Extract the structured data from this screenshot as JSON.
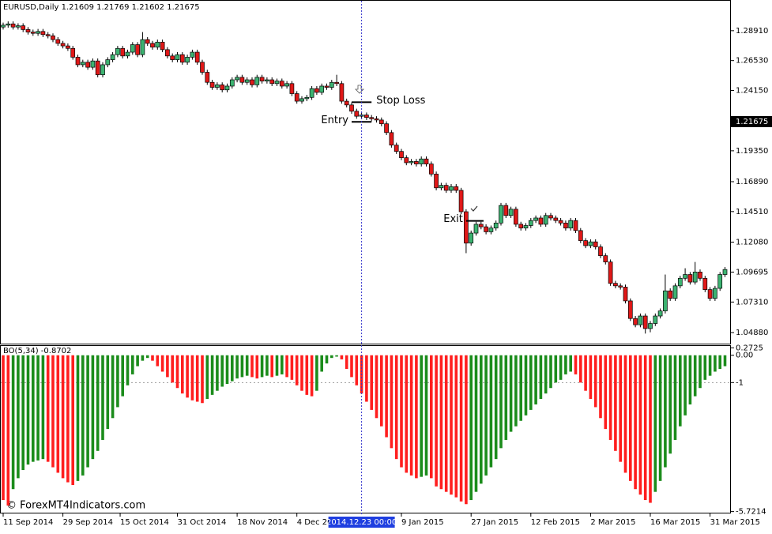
{
  "chart_data": [
    {
      "type": "candlestick",
      "title": "EURUSD,Daily  1.21609 1.21769 1.21602 1.21675",
      "up_color": "#3cb371",
      "down_color": "#e01818",
      "open": [
        1.292,
        1.2935,
        1.2945,
        1.292,
        1.293,
        1.29,
        1.288,
        1.287,
        1.2885,
        1.286,
        1.285,
        1.282,
        1.279,
        1.277,
        1.275,
        1.268,
        1.262,
        1.264,
        1.26,
        1.265,
        1.254,
        1.262,
        1.266,
        1.27,
        1.275,
        1.269,
        1.272,
        1.278,
        1.27,
        1.282,
        1.279,
        1.276,
        1.28,
        1.274,
        1.269,
        1.266,
        1.27,
        1.264,
        1.268,
        1.272,
        1.264,
        1.256,
        1.248,
        1.244,
        1.246,
        1.242,
        1.245,
        1.25,
        1.252,
        1.248,
        1.25,
        1.246,
        1.252,
        1.249,
        1.25,
        1.247,
        1.249,
        1.245,
        1.247,
        1.239,
        1.233,
        1.235,
        1.236,
        1.243,
        1.24,
        1.245,
        1.244,
        1.248,
        1.247,
        1.233,
        1.23,
        1.225,
        1.221,
        1.222,
        1.22,
        1.219,
        1.218,
        1.215,
        1.208,
        1.198,
        1.193,
        1.188,
        1.184,
        1.185,
        1.183,
        1.187,
        1.183,
        1.175,
        1.164,
        1.166,
        1.162,
        1.165,
        1.162,
        1.145,
        1.12,
        1.128,
        1.135,
        1.133,
        1.129,
        1.132,
        1.136,
        1.15,
        1.142,
        1.147,
        1.135,
        1.132,
        1.134,
        1.138,
        1.14,
        1.135,
        1.142,
        1.14,
        1.138,
        1.136,
        1.132,
        1.138,
        1.13,
        1.122,
        1.118,
        1.121,
        1.117,
        1.11,
        1.105,
        1.088,
        1.086,
        1.085,
        1.074,
        1.06,
        1.055,
        1.062,
        1.052,
        1.056,
        1.062,
        1.066,
        1.082,
        1.076,
        1.086,
        1.092,
        1.095,
        1.089,
        1.097,
        1.092,
        1.083,
        1.076,
        1.084,
        1.095
      ],
      "high": [
        1.2955,
        1.2965,
        1.2965,
        1.295,
        1.295,
        1.292,
        1.29,
        1.2905,
        1.2905,
        1.288,
        1.287,
        1.284,
        1.281,
        1.279,
        1.277,
        1.27,
        1.266,
        1.266,
        1.267,
        1.267,
        1.264,
        1.268,
        1.272,
        1.277,
        1.277,
        1.274,
        1.28,
        1.28,
        1.288,
        1.284,
        1.281,
        1.282,
        1.282,
        1.276,
        1.271,
        1.272,
        1.272,
        1.27,
        1.274,
        1.274,
        1.266,
        1.258,
        1.25,
        1.248,
        1.248,
        1.247,
        1.252,
        1.254,
        1.254,
        1.252,
        1.252,
        1.254,
        1.254,
        1.252,
        1.252,
        1.251,
        1.251,
        1.249,
        1.249,
        1.241,
        1.237,
        1.238,
        1.245,
        1.245,
        1.247,
        1.247,
        1.25,
        1.254,
        1.249,
        1.235,
        1.232,
        1.227,
        1.224,
        1.224,
        1.222,
        1.221,
        1.22,
        1.217,
        1.21,
        1.2,
        1.195,
        1.19,
        1.187,
        1.187,
        1.189,
        1.189,
        1.185,
        1.177,
        1.168,
        1.168,
        1.167,
        1.167,
        1.164,
        1.147,
        1.13,
        1.137,
        1.137,
        1.135,
        1.134,
        1.138,
        1.152,
        1.152,
        1.149,
        1.149,
        1.137,
        1.136,
        1.14,
        1.142,
        1.142,
        1.144,
        1.144,
        1.142,
        1.14,
        1.138,
        1.14,
        1.14,
        1.132,
        1.124,
        1.123,
        1.123,
        1.119,
        1.112,
        1.107,
        1.09,
        1.088,
        1.087,
        1.076,
        1.062,
        1.064,
        1.064,
        1.058,
        1.064,
        1.068,
        1.095,
        1.084,
        1.088,
        1.094,
        1.1,
        1.097,
        1.105,
        1.099,
        1.094,
        1.085,
        1.086,
        1.097,
        1.101
      ],
      "low": [
        1.29,
        1.2915,
        1.29,
        1.29,
        1.288,
        1.286,
        1.285,
        1.285,
        1.284,
        1.283,
        1.28,
        1.277,
        1.275,
        1.273,
        1.266,
        1.26,
        1.26,
        1.258,
        1.258,
        1.252,
        1.252,
        1.26,
        1.264,
        1.268,
        1.267,
        1.267,
        1.27,
        1.268,
        1.268,
        1.277,
        1.274,
        1.274,
        1.272,
        1.267,
        1.264,
        1.264,
        1.262,
        1.262,
        1.266,
        1.262,
        1.254,
        1.246,
        1.242,
        1.242,
        1.24,
        1.24,
        1.243,
        1.248,
        1.246,
        1.246,
        1.244,
        1.244,
        1.247,
        1.247,
        1.245,
        1.245,
        1.243,
        1.243,
        1.237,
        1.231,
        1.231,
        1.233,
        1.234,
        1.238,
        1.238,
        1.242,
        1.242,
        1.245,
        1.231,
        1.228,
        1.223,
        1.219,
        1.219,
        1.218,
        1.217,
        1.216,
        1.213,
        1.206,
        1.196,
        1.191,
        1.186,
        1.182,
        1.182,
        1.181,
        1.181,
        1.181,
        1.173,
        1.162,
        1.162,
        1.16,
        1.16,
        1.16,
        1.143,
        1.112,
        1.118,
        1.126,
        1.131,
        1.127,
        1.127,
        1.13,
        1.134,
        1.14,
        1.14,
        1.133,
        1.13,
        1.13,
        1.132,
        1.136,
        1.133,
        1.133,
        1.138,
        1.136,
        1.134,
        1.13,
        1.13,
        1.128,
        1.12,
        1.116,
        1.116,
        1.115,
        1.108,
        1.103,
        1.086,
        1.084,
        1.083,
        1.072,
        1.058,
        1.053,
        1.053,
        1.048,
        1.049,
        1.054,
        1.06,
        1.064,
        1.074,
        1.074,
        1.084,
        1.09,
        1.087,
        1.087,
        1.09,
        1.081,
        1.074,
        1.074,
        1.082,
        1.093
      ],
      "close": [
        1.2935,
        1.2945,
        1.292,
        1.293,
        1.29,
        1.288,
        1.287,
        1.2885,
        1.286,
        1.285,
        1.282,
        1.279,
        1.277,
        1.275,
        1.268,
        1.262,
        1.264,
        1.26,
        1.265,
        1.254,
        1.262,
        1.266,
        1.27,
        1.275,
        1.269,
        1.272,
        1.278,
        1.27,
        1.282,
        1.279,
        1.276,
        1.28,
        1.274,
        1.269,
        1.266,
        1.27,
        1.264,
        1.268,
        1.272,
        1.264,
        1.256,
        1.248,
        1.244,
        1.246,
        1.242,
        1.245,
        1.25,
        1.252,
        1.248,
        1.25,
        1.246,
        1.252,
        1.249,
        1.25,
        1.247,
        1.249,
        1.245,
        1.247,
        1.239,
        1.233,
        1.235,
        1.236,
        1.243,
        1.24,
        1.245,
        1.244,
        1.248,
        1.247,
        1.233,
        1.23,
        1.225,
        1.221,
        1.222,
        1.22,
        1.219,
        1.218,
        1.215,
        1.208,
        1.198,
        1.193,
        1.188,
        1.184,
        1.185,
        1.183,
        1.187,
        1.183,
        1.175,
        1.164,
        1.166,
        1.162,
        1.165,
        1.162,
        1.145,
        1.12,
        1.128,
        1.135,
        1.133,
        1.129,
        1.132,
        1.136,
        1.15,
        1.142,
        1.147,
        1.135,
        1.132,
        1.134,
        1.138,
        1.14,
        1.135,
        1.142,
        1.14,
        1.138,
        1.136,
        1.132,
        1.138,
        1.13,
        1.122,
        1.118,
        1.121,
        1.117,
        1.11,
        1.105,
        1.088,
        1.086,
        1.085,
        1.074,
        1.06,
        1.055,
        1.062,
        1.052,
        1.056,
        1.062,
        1.066,
        1.082,
        1.076,
        1.086,
        1.092,
        1.095,
        1.089,
        1.097,
        1.092,
        1.083,
        1.076,
        1.084,
        1.095,
        1.099
      ],
      "ylim": [
        1.04,
        1.3129
      ],
      "yticks": [
        {
          "value": 1.2891,
          "label": "1.28910"
        },
        {
          "value": 1.2653,
          "label": "1.26530"
        },
        {
          "value": 1.2415,
          "label": "1.24150"
        },
        {
          "value": 1.1935,
          "label": "1.19350"
        },
        {
          "value": 1.1689,
          "label": "1.16890"
        },
        {
          "value": 1.1451,
          "label": "1.14510"
        },
        {
          "value": 1.1208,
          "label": "1.12080"
        },
        1.09695,
        {
          "value": 1.0731,
          "label": "1.07310"
        },
        {
          "value": 1.0488,
          "label": "1.04880"
        }
      ],
      "current_price": 1.21675,
      "annotations": [
        {
          "label": "Stop Loss",
          "value": 1.2322,
          "x": [
            70,
            74
          ]
        },
        {
          "label": "Entry",
          "value": 1.2165,
          "x": [
            70,
            74
          ]
        },
        {
          "label": "Exit",
          "value": 1.1377,
          "x": [
            93,
            96.5
          ]
        }
      ]
    },
    {
      "type": "histogram",
      "title": "BO(5,34) -0.8702",
      "up_color": "#1b8c1b",
      "down_color": "#ff1e1e",
      "values": [
        -5.3,
        -5.5,
        -4.9,
        -4.5,
        -4.2,
        -4.0,
        -3.9,
        -3.85,
        -3.8,
        -3.9,
        -4.1,
        -4.3,
        -4.5,
        -4.65,
        -4.75,
        -4.6,
        -4.4,
        -4.1,
        -3.8,
        -3.5,
        -3.1,
        -2.7,
        -2.3,
        -1.9,
        -1.5,
        -1.1,
        -0.7,
        -0.4,
        -0.2,
        -0.1,
        -0.2,
        -0.4,
        -0.6,
        -0.8,
        -1.0,
        -1.2,
        -1.4,
        -1.55,
        -1.65,
        -1.7,
        -1.75,
        -1.6,
        -1.45,
        -1.3,
        -1.15,
        -1.05,
        -0.95,
        -0.85,
        -0.8,
        -0.75,
        -0.8,
        -0.85,
        -0.8,
        -0.75,
        -0.8,
        -0.75,
        -0.7,
        -0.8,
        -0.9,
        -1.1,
        -1.3,
        -1.45,
        -1.5,
        -1.3,
        -0.6,
        -0.3,
        -0.1,
        -0.05,
        -0.15,
        -0.5,
        -0.8,
        -1.1,
        -1.4,
        -1.7,
        -2.0,
        -2.3,
        -2.6,
        -3.0,
        -3.4,
        -3.8,
        -4.1,
        -4.3,
        -4.4,
        -4.5,
        -4.45,
        -4.4,
        -4.5,
        -4.8,
        -4.9,
        -5.0,
        -5.1,
        -5.2,
        -5.35,
        -5.45,
        -5.3,
        -5.0,
        -4.7,
        -4.4,
        -4.1,
        -3.8,
        -3.4,
        -3.1,
        -2.8,
        -2.6,
        -2.4,
        -2.2,
        -2.0,
        -1.8,
        -1.6,
        -1.4,
        -1.2,
        -1.0,
        -0.9,
        -0.7,
        -0.6,
        -0.7,
        -1.0,
        -1.3,
        -1.6,
        -1.9,
        -2.3,
        -2.7,
        -3.1,
        -3.5,
        -3.9,
        -4.3,
        -4.6,
        -4.9,
        -5.1,
        -5.3,
        -5.4,
        -5.0,
        -4.6,
        -4.1,
        -3.6,
        -3.1,
        -2.6,
        -2.2,
        -1.8,
        -1.5,
        -1.2,
        -0.9,
        -0.75,
        -0.6,
        -0.5,
        -0.4
      ],
      "ylim": [
        -5.79,
        0.31
      ],
      "yticks": [
        0.2725,
        {
          "value": 0,
          "label": "0.00"
        },
        -1,
        -5.7214
      ],
      "levels": [
        -1
      ],
      "xticks": [
        {
          "value": 0,
          "label": "11 Sep 2014"
        },
        {
          "value": 12,
          "label": "29 Sep 2014"
        },
        {
          "value": 23.5,
          "label": "15 Oct 2014"
        },
        {
          "value": 35,
          "label": "31 Oct 2014"
        },
        {
          "value": 47,
          "label": "18 Nov 2014"
        },
        {
          "value": 59,
          "label": "4 Dec 2014"
        },
        {
          "value": 80,
          "label": "9 Jan 2015"
        },
        {
          "value": 94,
          "label": "27 Jan 2015"
        },
        {
          "value": 106,
          "label": "12 Feb 2015"
        },
        {
          "value": 118,
          "label": "2 Mar 2015"
        },
        {
          "value": 130,
          "label": "16 Mar 2015"
        },
        {
          "value": 142,
          "label": "31 Mar 2015"
        }
      ],
      "crosshair": {
        "x": 72,
        "label": "2014.12.23 00:00"
      },
      "watermark": "© ForexMT4Indicators.com"
    }
  ]
}
